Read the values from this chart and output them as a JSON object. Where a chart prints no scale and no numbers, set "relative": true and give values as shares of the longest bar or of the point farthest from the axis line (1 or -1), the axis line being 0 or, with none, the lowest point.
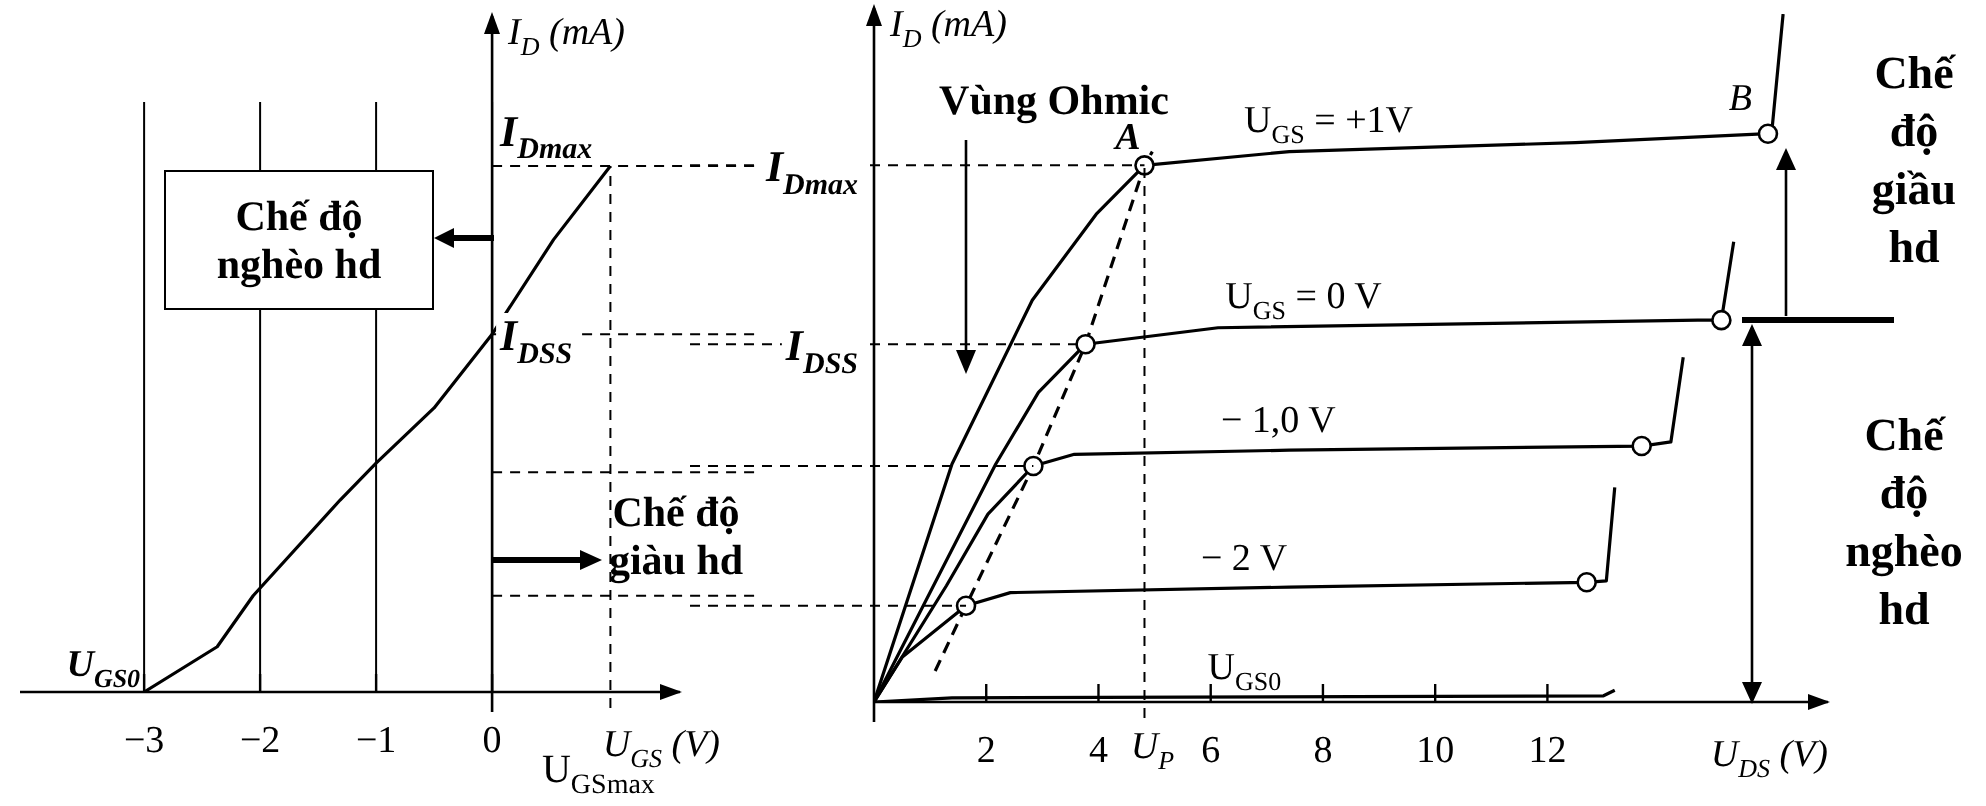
{
  "chart_data": [
    {
      "type": "line",
      "xlabel": "U$_{GS}$ (V)",
      "ylabel": "I$_{D}$ (mA)",
      "relative": true,
      "color": "#000000",
      "x": [
        -3,
        -2.37,
        -2.06,
        -1.31,
        -1.0,
        -0.5,
        0,
        0.53,
        1.02
      ],
      "values": [
        0,
        0.086,
        0.183,
        0.365,
        0.435,
        0.54,
        0.68,
        0.86,
        1.0
      ],
      "xlim": [
        -4.07,
        1.62
      ],
      "xticks": [
        -3,
        -2,
        -1,
        0
      ],
      "grid": "x",
      "ref_lines": [
        {
          "axis": "y",
          "value": 1.0,
          "label": "I$_{Dmax}$"
        },
        {
          "axis": "y",
          "value": 0.68,
          "label": "I$_{DSS}$"
        },
        {
          "axis": "y",
          "value": 0.418
        },
        {
          "axis": "y",
          "value": 0.183
        },
        {
          "axis": "x",
          "value": 1.02,
          "label": "U$_{GSmax}$"
        }
      ],
      "annotations": [
        {
          "text": "U$_{GS0}$",
          "x": -3,
          "y": 0
        },
        "Chế độ nghèo hd",
        "Chế độ giàu hd"
      ]
    },
    {
      "type": "line",
      "xlabel": "U$_{DS}$ (V)",
      "ylabel": "I$_{D}$ (mA)",
      "relative": true,
      "xlim": [
        0,
        17
      ],
      "xticks": [
        2,
        4,
        6,
        8,
        10,
        12
      ],
      "series": [
        {
          "name": "U$_{GS}$ = +1V",
          "color": "#000000",
          "x": [
            0,
            1.39,
            2.82,
            3.96,
            4.82,
            7.4,
            12.5,
            15.93,
            16.0,
            16.2
          ],
          "values": [
            0,
            0.346,
            0.584,
            0.709,
            0.78,
            0.8,
            0.813,
            0.826,
            0.83,
            1.0
          ]
        },
        {
          "name": "U$_{GS}$ = 0 V",
          "color": "#000000",
          "x": [
            0,
            2.17,
            2.93,
            3.77,
            6.13,
            14.68,
            15.1,
            15.32
          ],
          "values": [
            0,
            0.346,
            0.45,
            0.52,
            0.544,
            0.555,
            0.555,
            0.669
          ]
        },
        {
          "name": "− 1,0 V",
          "color": "#000000",
          "x": [
            0,
            1.29,
            2.03,
            2.84,
            3.57,
            7.4,
            13.68,
            14.2,
            14.42
          ],
          "values": [
            0,
            0.169,
            0.273,
            0.343,
            0.36,
            0.366,
            0.372,
            0.378,
            0.501
          ]
        },
        {
          "name": "− 2 V",
          "color": "#000000",
          "x": [
            0,
            0.5,
            1.64,
            2.43,
            7.4,
            12.7,
            13.05,
            13.2
          ],
          "values": [
            0,
            0.065,
            0.14,
            0.159,
            0.167,
            0.174,
            0.176,
            0.312
          ]
        },
        {
          "name": "U$_{GS0}$",
          "color": "#000000",
          "x": [
            0,
            1.39,
            13.0,
            13.2
          ],
          "values": [
            0,
            0.006,
            0.009,
            0.017
          ]
        },
        {
          "type": "line",
          "line_style": "dashed",
          "color": "#000000",
          "x": [
            1.09,
            1.64,
            2.84,
            3.77,
            4.82,
            4.96
          ],
          "values": [
            0.045,
            0.14,
            0.343,
            0.52,
            0.78,
            0.8
          ]
        },
        {
          "type": "scatter",
          "marker": "circle",
          "color": "#000000",
          "x": [
            1.64,
            2.84,
            3.77,
            4.82,
            12.7,
            13.68,
            15.1,
            15.93
          ],
          "values": [
            0.14,
            0.343,
            0.52,
            0.78,
            0.174,
            0.372,
            0.555,
            0.826
          ]
        }
      ],
      "ref_lines": [
        {
          "axis": "y",
          "value": 0.78,
          "label": "I$_{Dmax}$"
        },
        {
          "axis": "y",
          "value": 0.52,
          "label": "I$_{DSS}$"
        },
        {
          "axis": "y",
          "value": 0.343
        },
        {
          "axis": "y",
          "value": 0.14
        },
        {
          "axis": "x",
          "value": 4.82,
          "label": "U$_{P}$"
        }
      ],
      "annotations": [
        {
          "text": "A",
          "x": 4.82,
          "y": 0.78
        },
        {
          "text": "B",
          "x": 15.93,
          "y": 0.826
        },
        "Vùng Ohmic",
        "Chế độ giầu hd",
        "Chế độ nghèo hd"
      ]
    }
  ]
}
